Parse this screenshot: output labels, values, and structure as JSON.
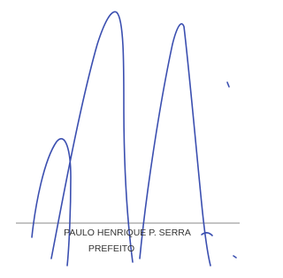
{
  "signature": {
    "name": "PAULO HENRIQUE P. SERRA",
    "title": "PREFEITO"
  }
}
